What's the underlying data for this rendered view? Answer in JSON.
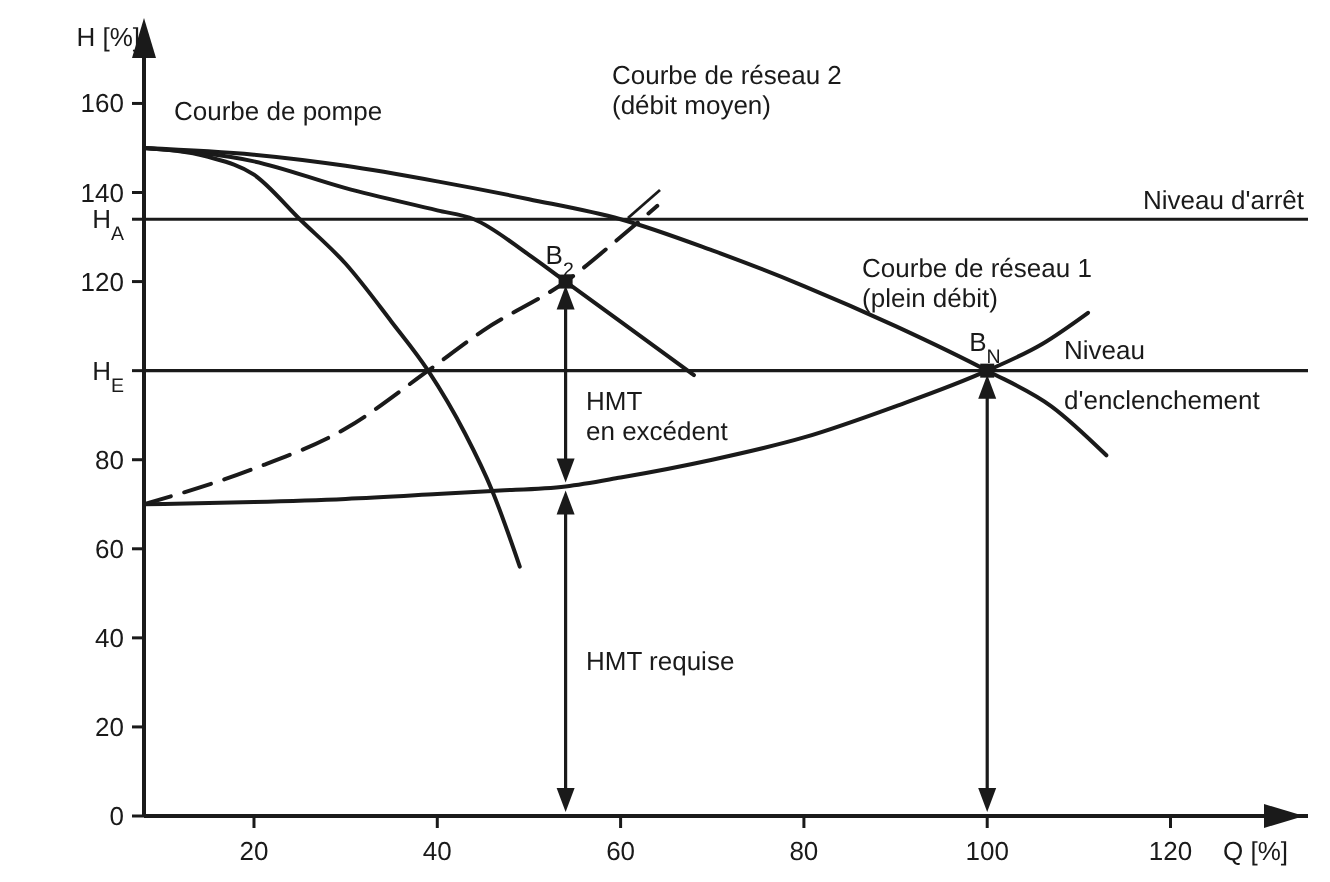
{
  "chart_data": {
    "type": "line",
    "xlabel": "Q [%]",
    "ylabel": "H [%]",
    "xlim": [
      8,
      135
    ],
    "ylim": [
      0,
      172
    ],
    "xticks": [
      20,
      40,
      60,
      80,
      100,
      120
    ],
    "yticks": [
      0,
      20,
      40,
      60,
      80,
      {
        "value": 100,
        "label": "H$_{E}$"
      },
      120,
      {
        "value": 134,
        "label": "H$_{A}$"
      },
      140,
      160
    ],
    "grid": false,
    "marker": "none",
    "series": [
      {
        "color": "#1a1a1a",
        "x": [
          8,
          15,
          20,
          25,
          30,
          35,
          39,
          43,
          46,
          49
        ],
        "values": [
          150,
          148,
          144,
          134,
          124,
          111,
          100,
          86,
          73,
          56
        ]
      },
      {
        "color": "#1a1a1a",
        "x": [
          8,
          20,
          30,
          40,
          44,
          50,
          54,
          60,
          68
        ],
        "values": [
          150,
          147,
          141,
          136,
          134,
          126,
          120,
          111,
          99
        ]
      },
      {
        "color": "#1a1a1a",
        "x": [
          8,
          20,
          30,
          40,
          50,
          60,
          70,
          80,
          90,
          100,
          107,
          113
        ],
        "values": [
          150,
          148.5,
          146,
          142.5,
          138.5,
          134,
          127,
          119,
          110,
          100,
          92,
          81
        ]
      },
      {
        "color": "#1a1a1a",
        "x": [
          8,
          20,
          30,
          40,
          46,
          54,
          60,
          70,
          80,
          90,
          100,
          106,
          111
        ],
        "values": [
          70,
          70.5,
          71.2,
          72.3,
          73,
          74,
          76,
          80,
          85,
          92,
          100,
          106,
          113
        ]
      },
      {
        "color": "#1a1a1a",
        "line_style": "dashed",
        "x": [
          8,
          20,
          30,
          39,
          45,
          54,
          60,
          64
        ],
        "values": [
          70,
          78,
          87,
          100,
          109,
          120,
          130,
          137
        ]
      }
    ],
    "ref_lines": [
      {
        "axis": "y",
        "value": 134,
        "label": "Niveau d'arrêt"
      },
      {
        "axis": "y",
        "value": 100,
        "label": "Niveau\nd'enclenchement"
      }
    ],
    "annotations": [
      {
        "text": "Courbe de pompe",
        "x": 8,
        "y": 150
      },
      "Courbe de réseau 2\n(débit moyen)",
      {
        "text": "Courbe de réseau 1\n(plein débit)",
        "x": 111,
        "y": 113
      },
      {
        "text": "B$_{2}$",
        "x": 54,
        "y": 120
      },
      {
        "text": "B$_{N}$",
        "x": 100,
        "y": 100
      },
      "HMT\nen excédent",
      "HMT requise"
    ]
  }
}
